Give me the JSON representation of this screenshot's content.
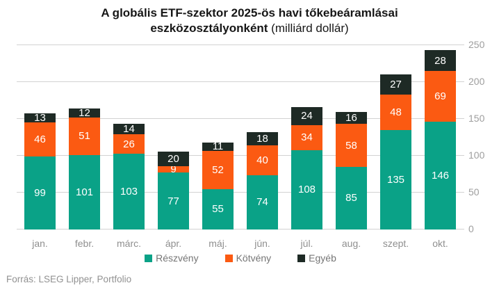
{
  "title": {
    "line1": "A globális ETF-szektor 2025-ös havi tőkebeáramlásai",
    "line2_bold": "eszközosztályonként",
    "line2_normal": " (milliárd dollár)"
  },
  "footer": {
    "source": "Forrás: LSEG Lipper, Portfolio"
  },
  "colors": {
    "equity": "#0aa287",
    "bond": "#fb5a12",
    "other": "#1e2a25",
    "grid": "#d2d2d2",
    "axis_text": "#9e9e9e",
    "legend_text": "#757575",
    "source_text": "#919191",
    "value_label_text": "#ffffff",
    "background": "#ffffff"
  },
  "chart_data": {
    "type": "bar",
    "stacked": true,
    "title": "A globális ETF-szektor 2025-ös havi tőkebeáramlásai eszközosztályonként (milliárd dollár)",
    "categories": [
      "jan.",
      "febr.",
      "márc.",
      "ápr.",
      "máj.",
      "jún.",
      "júl.",
      "aug.",
      "szept.",
      "okt."
    ],
    "series": [
      {
        "name": "Részvény",
        "color": "#0aa287",
        "values": [
          99,
          101,
          103,
          77,
          55,
          74,
          108,
          85,
          135,
          146
        ]
      },
      {
        "name": "Kötvény",
        "color": "#fb5a12",
        "values": [
          46,
          51,
          26,
          9,
          52,
          40,
          34,
          58,
          48,
          69
        ]
      },
      {
        "name": "Egyéb",
        "color": "#1e2a25",
        "values": [
          13,
          12,
          14,
          20,
          11,
          18,
          24,
          16,
          27,
          28
        ]
      }
    ],
    "totals": [
      158,
      164,
      143,
      106,
      118,
      132,
      166,
      159,
      210,
      243
    ],
    "y_axis": {
      "ticks": [
        0,
        50,
        100,
        150,
        200,
        250
      ],
      "max": 250,
      "position": "right"
    },
    "xlabel": "",
    "ylabel": "",
    "grid": true,
    "legend_position": "bottom",
    "value_labels": "inside-white"
  }
}
